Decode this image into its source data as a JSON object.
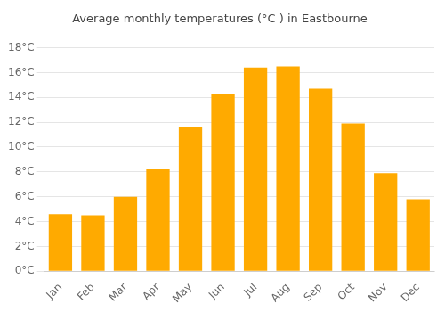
{
  "chart_data": {
    "type": "bar",
    "title": "Average monthly temperatures (°C ) in Eastbourne",
    "categories": [
      "Jan",
      "Feb",
      "Mar",
      "Apr",
      "May",
      "Jun",
      "Jul",
      "Aug",
      "Sep",
      "Oct",
      "Nov",
      "Dec"
    ],
    "values": [
      4.6,
      4.5,
      6.0,
      8.2,
      11.6,
      14.3,
      16.4,
      16.5,
      14.7,
      11.9,
      7.9,
      5.8
    ],
    "color": "#FFAA00",
    "ylim": [
      0,
      19
    ],
    "yticks": [
      {
        "value": 0,
        "label": "0°C"
      },
      {
        "value": 2,
        "label": "2°C"
      },
      {
        "value": 4,
        "label": "4°C"
      },
      {
        "value": 6,
        "label": "6°C"
      },
      {
        "value": 8,
        "label": "8°C"
      },
      {
        "value": 10,
        "label": "10°C"
      },
      {
        "value": 12,
        "label": "12°C"
      },
      {
        "value": 14,
        "label": "14°C"
      },
      {
        "value": 16,
        "label": "16°C"
      },
      {
        "value": 18,
        "label": "18°C"
      }
    ],
    "grid": true
  }
}
